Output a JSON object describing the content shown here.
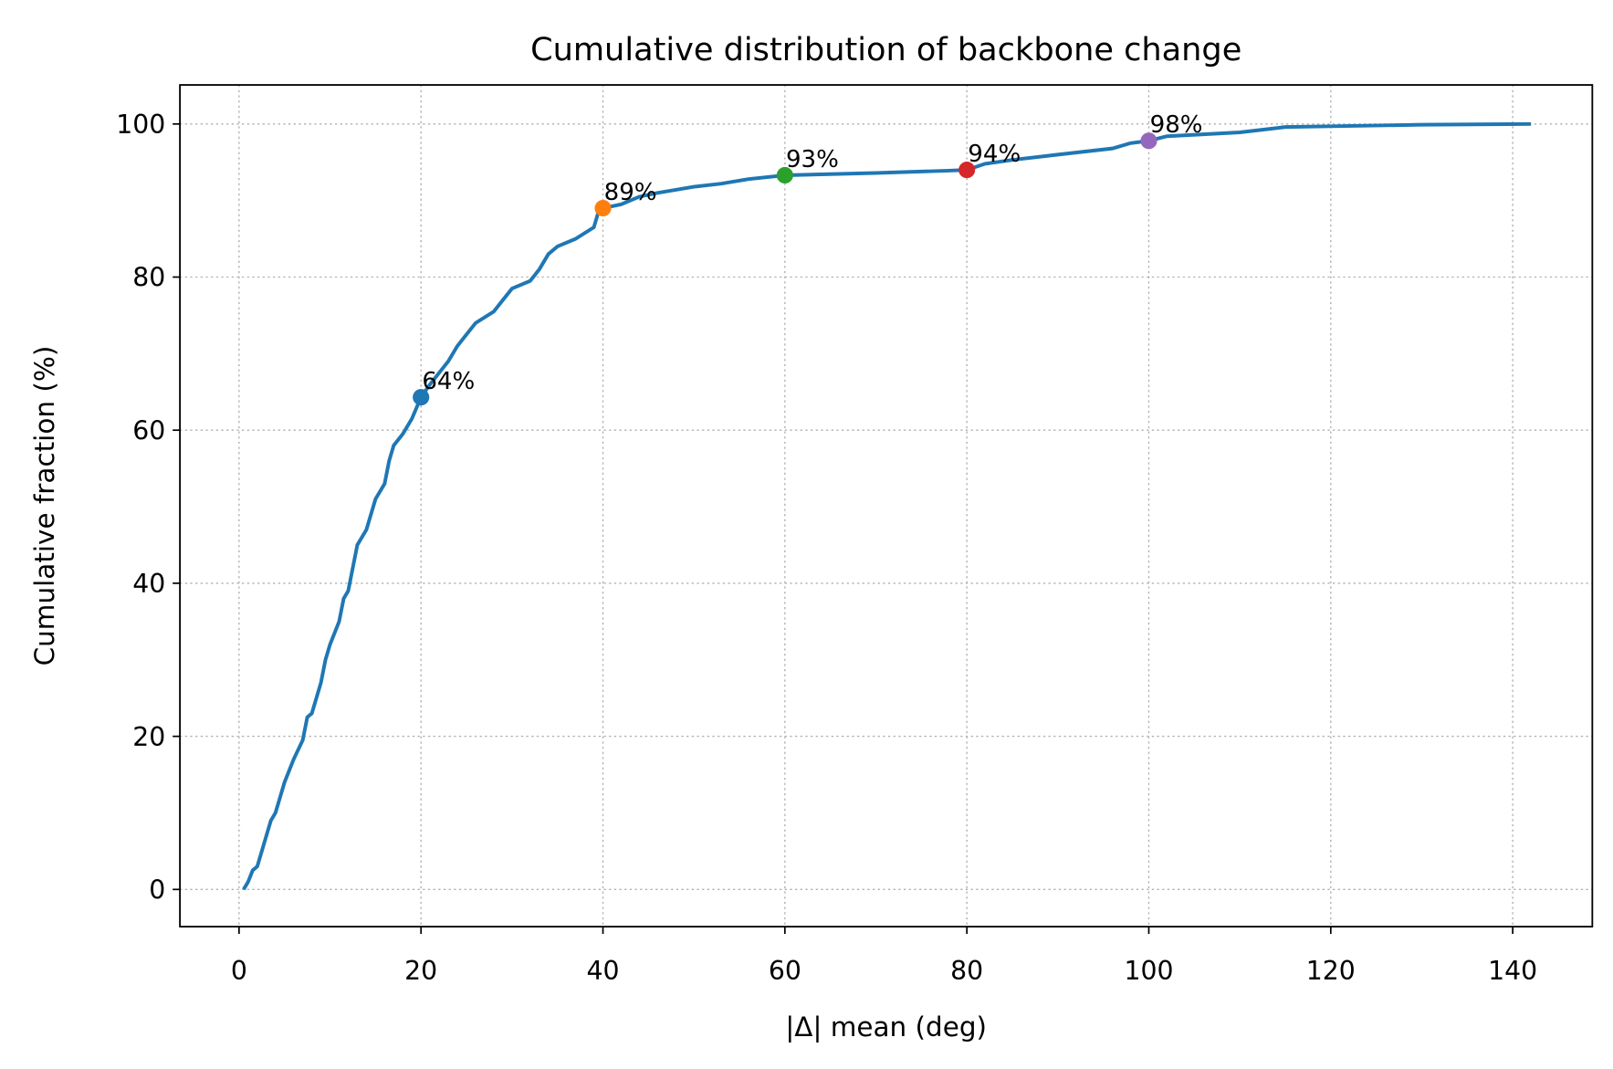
{
  "chart_data": {
    "type": "line",
    "title": "Cumulative distribution of backbone change",
    "xlabel": "|Δ| mean (deg)",
    "ylabel": "Cumulative fraction (%)",
    "x": [
      0.5,
      1,
      1.5,
      2,
      2.5,
      3,
      3.5,
      4,
      4.5,
      5,
      6,
      7,
      7.5,
      8,
      8.5,
      9,
      9.5,
      10,
      11,
      11.5,
      12,
      12.5,
      13,
      14,
      14.5,
      15,
      16,
      16.5,
      17,
      18,
      19,
      20,
      21,
      22,
      23,
      24,
      25,
      26,
      28,
      29,
      30,
      32,
      33,
      34,
      35,
      37,
      39,
      39.5,
      40,
      42,
      44,
      46,
      50,
      53,
      56,
      60,
      70,
      78,
      80,
      82,
      85,
      90,
      96,
      98,
      100,
      102,
      110,
      115,
      120,
      130,
      142
    ],
    "values": [
      0,
      1,
      2.5,
      3,
      5,
      7,
      9,
      10,
      12,
      14,
      17,
      19.5,
      22.5,
      23,
      25,
      27,
      30,
      32,
      35,
      38,
      39,
      42,
      45,
      47,
      49,
      51,
      53,
      56,
      58,
      59.5,
      61.5,
      64.3,
      66,
      67.5,
      69,
      71,
      72.5,
      74,
      75.5,
      77,
      78.5,
      79.5,
      81,
      83,
      84,
      85,
      86.5,
      88.5,
      89,
      89.5,
      90.5,
      91,
      91.8,
      92.2,
      92.8,
      93.3,
      93.6,
      93.9,
      94,
      94.8,
      95.3,
      96,
      96.8,
      97.5,
      97.8,
      98.4,
      98.9,
      99.6,
      99.7,
      99.9,
      100
    ],
    "color": "#1f77b4",
    "markers": {
      "x": [
        20,
        40,
        60,
        80,
        100
      ],
      "values": [
        64.3,
        89,
        93.3,
        94,
        97.8
      ],
      "value_labels": [
        "64%",
        "89%",
        "93%",
        "94%",
        "98%"
      ],
      "colors": [
        "#1f77b4",
        "#ff7f0e",
        "#2ca02c",
        "#d62728",
        "#9467bd"
      ]
    },
    "xlim": [
      -6.5,
      148.75
    ],
    "ylim": [
      -4.86,
      105.1
    ],
    "xticks": [
      0,
      20,
      40,
      60,
      80,
      100,
      120,
      140
    ],
    "yticks": [
      0,
      20,
      40,
      60,
      80,
      100
    ],
    "grid": true
  }
}
